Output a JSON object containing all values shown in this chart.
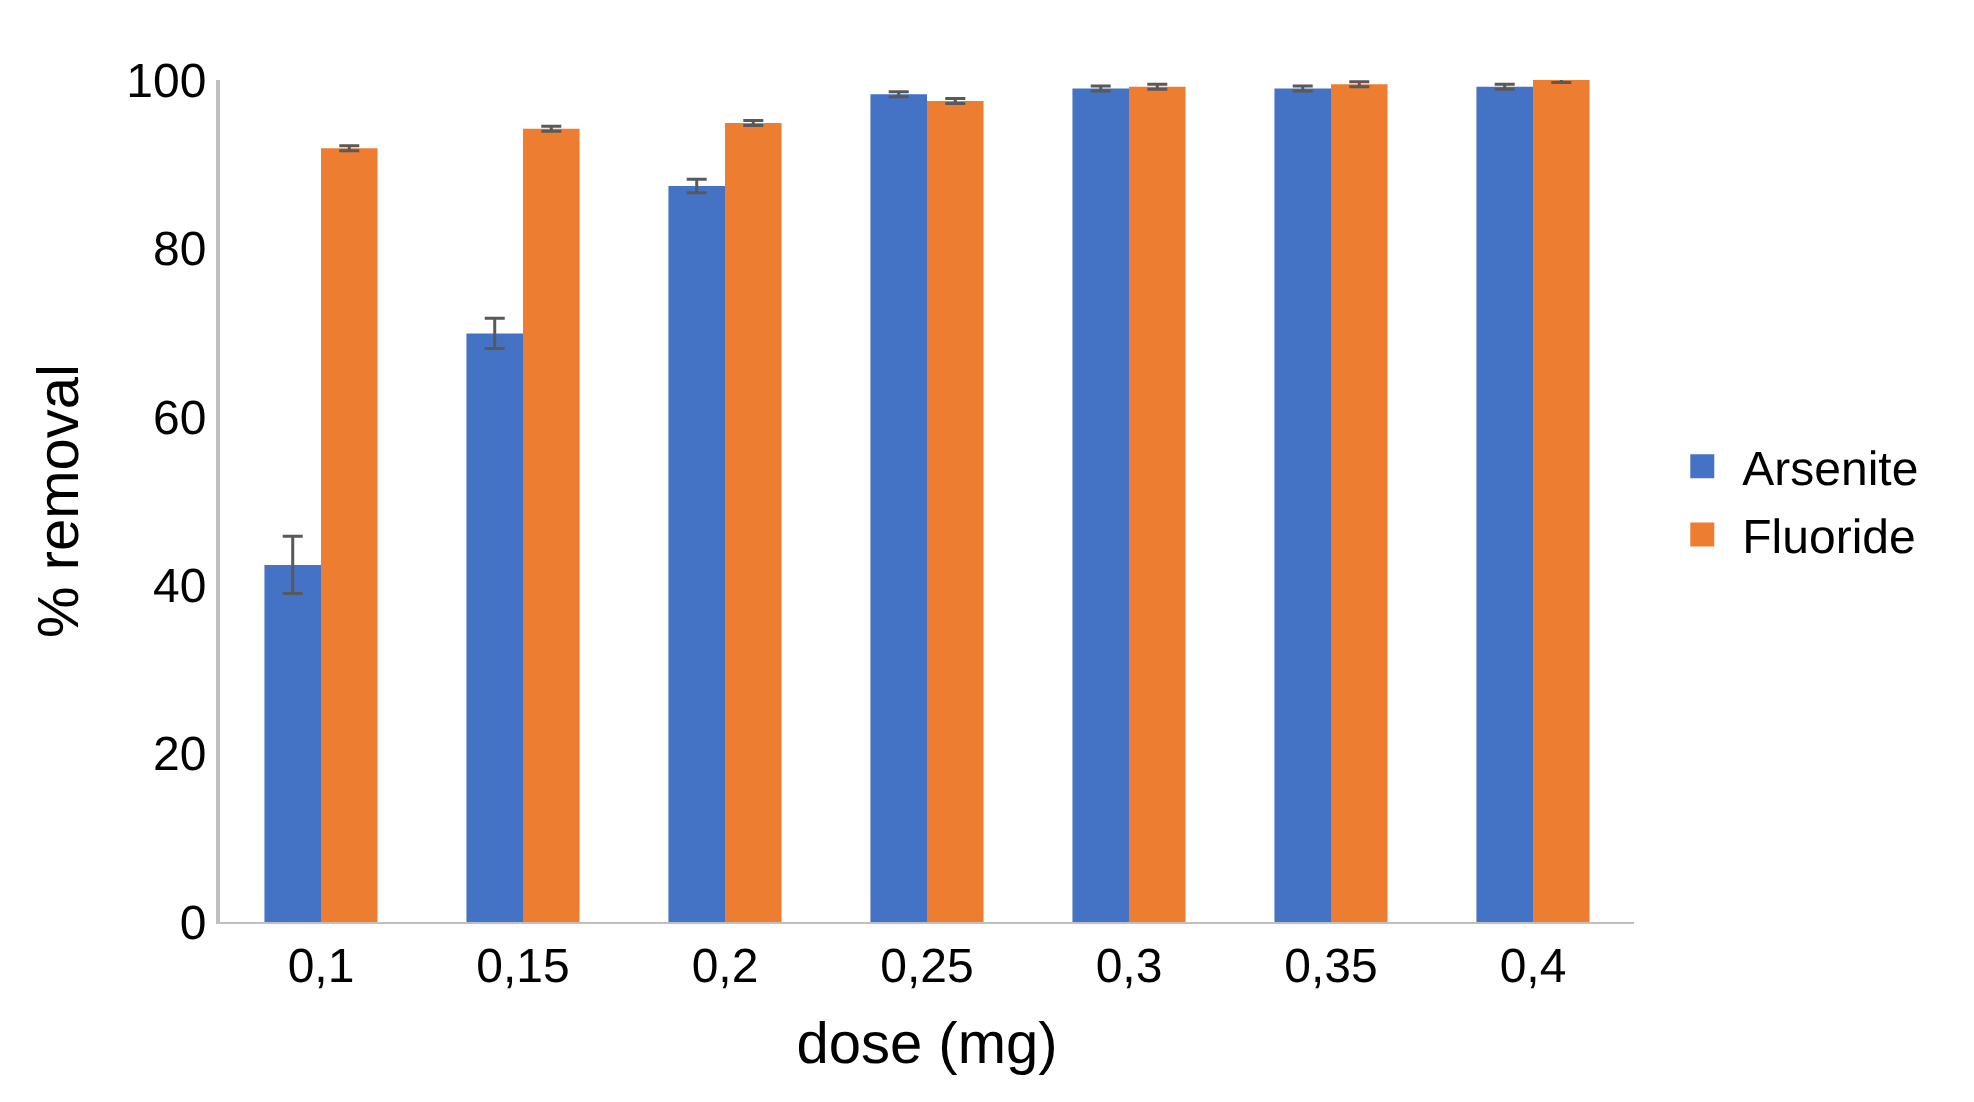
{
  "chart_data": {
    "type": "bar",
    "xlabel": "dose (mg)",
    "ylabel": "% removal",
    "categories": [
      "0,1",
      "0,15",
      "0,2",
      "0,25",
      "0,3",
      "0,35",
      "0,4"
    ],
    "series": [
      {
        "name": "Arsenite",
        "color": "#4472c4",
        "values": [
          42.4,
          69.9,
          87.4,
          98.3,
          99.0,
          99.0,
          99.2
        ],
        "errors": [
          3.4,
          1.8,
          0.8,
          0.3,
          0.3,
          0.3,
          0.3
        ]
      },
      {
        "name": "Fluoride",
        "color": "#ed7d31",
        "values": [
          91.9,
          94.2,
          94.9,
          97.5,
          99.2,
          99.5,
          100
        ],
        "errors": [
          0.3,
          0.3,
          0.3,
          0.3,
          0.3,
          0.3,
          0.3
        ]
      }
    ],
    "ylim": [
      0,
      100
    ],
    "yticks": [
      0,
      20,
      40,
      60,
      80,
      100
    ],
    "grid": false,
    "legend": "right"
  }
}
